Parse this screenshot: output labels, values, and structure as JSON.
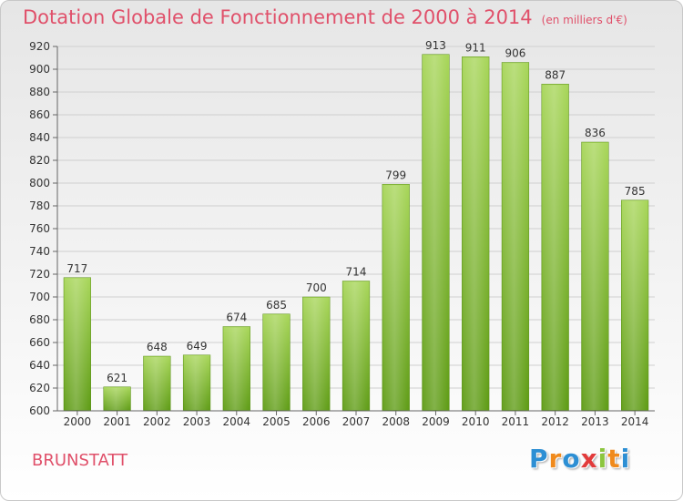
{
  "chart_data": {
    "type": "bar",
    "title": "Dotation Globale de Fonctionnement de 2000 à 2014",
    "unit_label": "(en milliers d'€)",
    "categories": [
      "2000",
      "2001",
      "2002",
      "2003",
      "2004",
      "2005",
      "2006",
      "2007",
      "2008",
      "2009",
      "2010",
      "2011",
      "2012",
      "2013",
      "2014"
    ],
    "values": [
      717,
      621,
      648,
      649,
      674,
      685,
      700,
      714,
      799,
      913,
      911,
      906,
      887,
      836,
      785
    ],
    "ylim": [
      600,
      920
    ],
    "y_ticks": [
      600,
      620,
      640,
      660,
      680,
      700,
      720,
      740,
      760,
      780,
      800,
      820,
      840,
      860,
      880,
      900,
      920
    ],
    "grid": true,
    "bar_color": "#7ab82e"
  },
  "footer": {
    "commune": "BRUNSTATT",
    "logo_letters": [
      {
        "char": "P",
        "color": "#2d8fd4"
      },
      {
        "char": "r",
        "color": "#f08a1c"
      },
      {
        "char": "o",
        "color": "#2d8fd4"
      },
      {
        "char": "x",
        "color": "#e23b3b"
      },
      {
        "char": "i",
        "color": "#8cc63f"
      },
      {
        "char": "t",
        "color": "#f08a1c"
      },
      {
        "char": "i",
        "color": "#2d8fd4"
      }
    ]
  }
}
